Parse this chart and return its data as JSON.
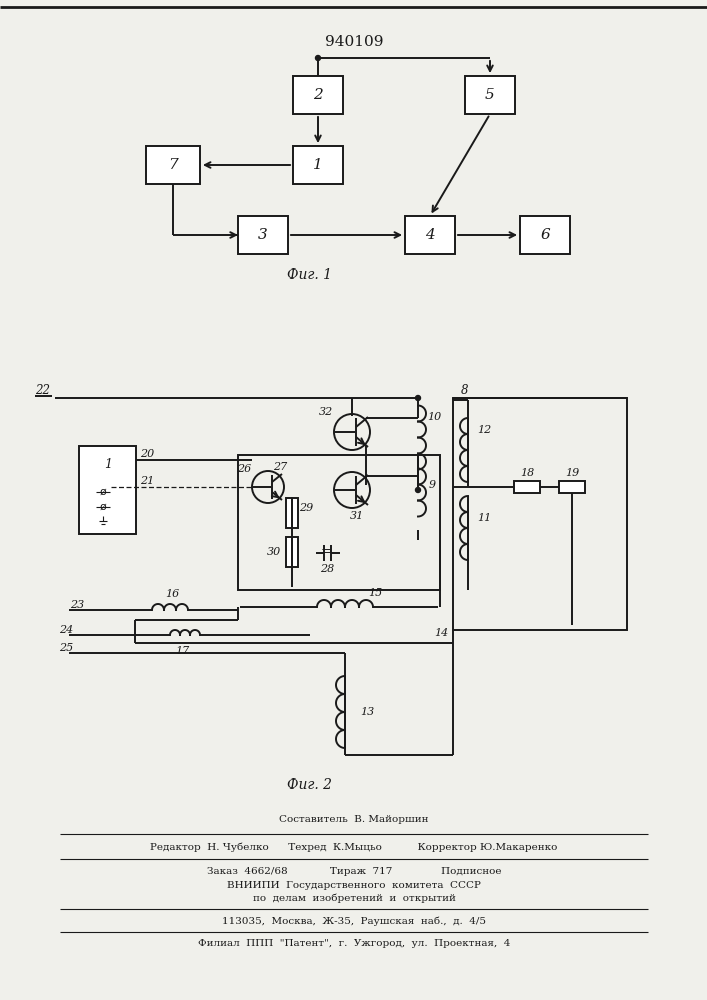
{
  "title": "940109",
  "fig1_caption": "Фиг. 1",
  "fig2_caption": "Фиг. 2",
  "footer_line0": "Составитель  В. Майоршин",
  "footer_line1": "Редактор  Н. Чубелко      Техред  К.Мыцьо           Корректор Ю.Макаренко",
  "footer_line2": "Заказ  4662/68             Тираж  717               Подписное",
  "footer_line3": "ВНИИПИ  Государственного  комитета  СССР",
  "footer_line4": "по  делам  изобретений  и  открытий",
  "footer_line5": "113035,  Москва,  Ж-35,  Раушская  наб.,  д.  4/5",
  "footer_line6": "Филиал  ППП  \"Патент\",  г.  Ужгород,  ул.  Проектная,  4",
  "bg_color": "#f0f0eb"
}
